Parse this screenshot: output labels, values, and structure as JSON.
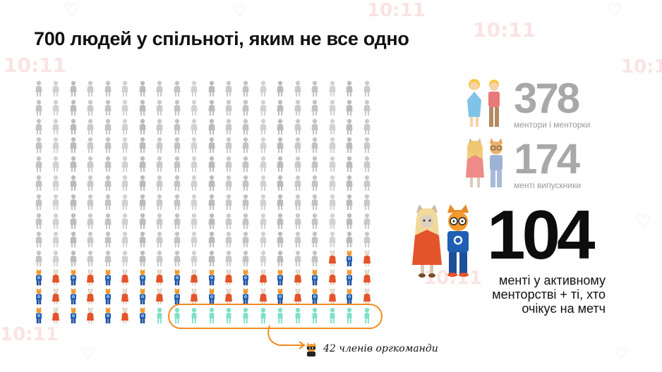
{
  "title": "700 людей у спільноті, яким не все одно",
  "grid": {
    "columns": 20,
    "rows": 13,
    "counts": {
      "inactive": 197,
      "mentee_cat": 63,
      "mentee_girl": 13,
      "orgteam": 13
    }
  },
  "org_note": {
    "label": "42 членів оргкоманди",
    "icon": "ninja-cat-icon"
  },
  "stats": {
    "mentors": {
      "number": "378",
      "caption": "ментори і менторки",
      "icon": "couple-icon"
    },
    "graduates": {
      "number": "174",
      "caption": "менті випускники",
      "icon": "cat-couple-icon"
    },
    "active": {
      "number": "104",
      "caption": "менті у активному менторстві + ті, хто очікує на метч",
      "icon": "cat-mentees-icon"
    }
  },
  "colors": {
    "inactive": "#cfcfcf",
    "orange_cat": "#f29a2e",
    "mentee_dress": "#e4542b",
    "mentee_shirt": "#1e5fb3",
    "orgteam": "#7fe0c8",
    "outline": "#f28a22",
    "watermark": "#fbe3e3"
  }
}
